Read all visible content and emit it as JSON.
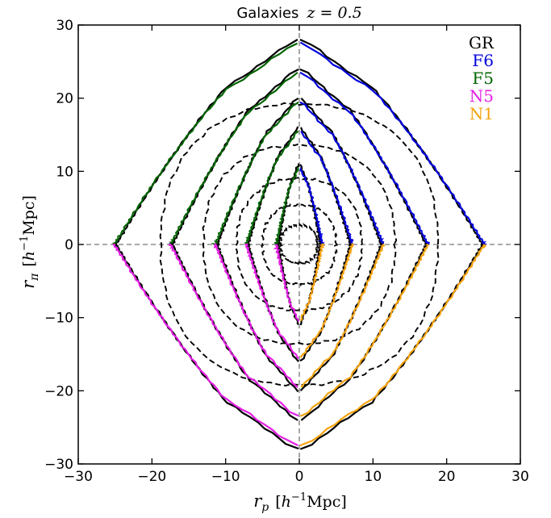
{
  "chart_data": {
    "type": "line",
    "title": "Galaxies",
    "title_math": "z = 0.5",
    "xlabel": "r_p [h^-1 Mpc]",
    "ylabel": "r_π [h^-1 Mpc]",
    "xlim": [
      -30,
      30
    ],
    "ylim": [
      -30,
      30
    ],
    "xticks": [
      -30,
      -20,
      -10,
      0,
      10,
      20,
      30
    ],
    "yticks": [
      -30,
      -20,
      -10,
      0,
      10,
      20,
      30
    ],
    "xtick_labels": [
      "−30",
      "−20",
      "−10",
      "0",
      "10",
      "20",
      "30"
    ],
    "ytick_labels": [
      "−30",
      "−20",
      "−10",
      "0",
      "10",
      "20",
      "30"
    ],
    "grid": false,
    "reference_lines": [
      "x=0",
      "y=0"
    ],
    "legend": {
      "position": "top-right",
      "entries": [
        {
          "label": "GR",
          "color": "#000000"
        },
        {
          "label": "F6",
          "color": "#0000dd"
        },
        {
          "label": "F5",
          "color": "#006400"
        },
        {
          "label": "N5",
          "color": "#e51ee5"
        },
        {
          "label": "N1",
          "color": "#f5a30f"
        }
      ]
    },
    "linear_theory_contours": {
      "style": "dashed",
      "color": "#000000",
      "levels": [
        {
          "rp_extent": 2.5,
          "rpi_extent": 2.6
        },
        {
          "rp_extent": 5.0,
          "rpi_extent": 5.4
        },
        {
          "rp_extent": 8.5,
          "rpi_extent": 9.0
        },
        {
          "rp_extent": 13.0,
          "rpi_extent": 13.6
        },
        {
          "rp_extent": 18.8,
          "rpi_extent": 19.2
        }
      ]
    },
    "simulation_contours": {
      "upper_left_models": [
        "GR",
        "F5"
      ],
      "upper_right_models": [
        "GR",
        "F6"
      ],
      "lower_left_models": [
        "GR",
        "N5"
      ],
      "lower_right_models": [
        "GR",
        "N1"
      ],
      "levels": [
        {
          "rp_extent": 2.9,
          "rpi_peak": 11.0
        },
        {
          "rp_extent": 7.0,
          "rpi_peak": 16.0
        },
        {
          "rp_extent": 11.2,
          "rpi_peak": 20.0
        },
        {
          "rp_extent": 17.3,
          "rpi_peak": 24.0
        },
        {
          "rp_extent": 25.0,
          "rpi_peak": 28.0
        }
      ]
    }
  }
}
